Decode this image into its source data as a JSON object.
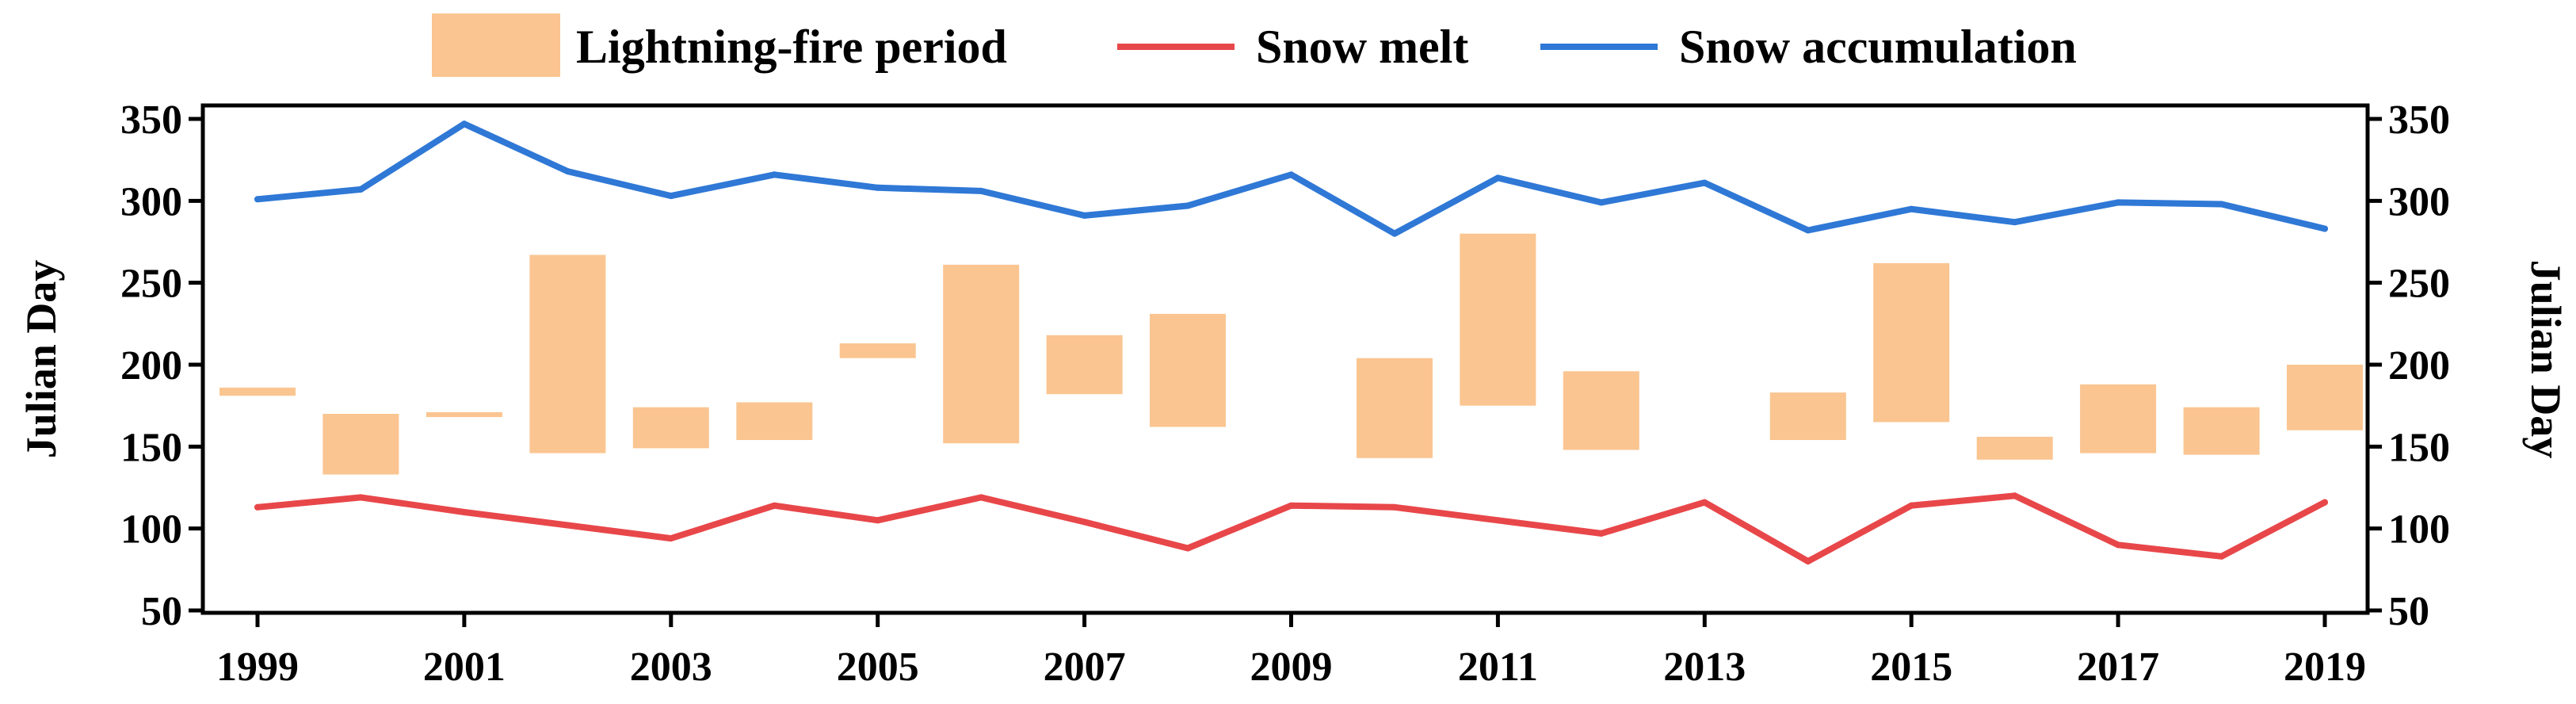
{
  "chart_data": {
    "type": "bar+line",
    "years": [
      1999,
      2000,
      2001,
      2002,
      2003,
      2004,
      2005,
      2006,
      2007,
      2008,
      2009,
      2010,
      2011,
      2012,
      2013,
      2014,
      2015,
      2016,
      2017,
      2018,
      2019
    ],
    "x_tick_labels": [
      "1999",
      "2001",
      "2003",
      "2005",
      "2007",
      "2009",
      "2011",
      "2013",
      "2015",
      "2017",
      "2019"
    ],
    "x_ticks": [
      1999,
      2001,
      2003,
      2005,
      2007,
      2009,
      2011,
      2013,
      2015,
      2017,
      2019
    ],
    "ylabel_left": "Julian Day",
    "ylabel_right": "Julian Day",
    "ylim": [
      50,
      360
    ],
    "y_ticks": [
      50,
      100,
      150,
      200,
      250,
      300,
      350
    ],
    "y_tick_labels": [
      "50",
      "100",
      "150",
      "200",
      "250",
      "300",
      "350"
    ],
    "series": [
      {
        "name": "Lightning-fire period",
        "kind": "floating-bar",
        "color": "#FAC591",
        "ranges": [
          [
            181,
            186
          ],
          [
            133,
            170
          ],
          [
            168,
            171
          ],
          [
            146,
            267
          ],
          [
            149,
            174
          ],
          [
            154,
            177
          ],
          [
            204,
            213
          ],
          [
            152,
            261
          ],
          [
            182,
            218
          ],
          [
            162,
            231
          ],
          null,
          [
            143,
            204
          ],
          [
            175,
            280
          ],
          [
            148,
            196
          ],
          null,
          [
            154,
            183
          ],
          [
            165,
            262
          ],
          [
            142,
            156
          ],
          [
            146,
            188
          ],
          [
            145,
            174
          ],
          [
            160,
            200
          ]
        ]
      },
      {
        "name": "Snow melt",
        "kind": "line",
        "color": "#E8474A",
        "values": [
          113,
          119,
          110,
          102,
          94,
          114,
          105,
          119,
          104,
          88,
          114,
          113,
          105,
          97,
          116,
          80,
          114,
          120,
          90,
          83,
          116
        ]
      },
      {
        "name": "Snow accumulation",
        "kind": "line",
        "color": "#2F78D6",
        "values": [
          301,
          307,
          347,
          318,
          303,
          316,
          308,
          306,
          291,
          297,
          316,
          280,
          314,
          299,
          311,
          282,
          295,
          287,
          299,
          298,
          283
        ]
      }
    ],
    "legend": {
      "placement": "top-center",
      "entries": [
        "Lightning-fire period",
        "Snow melt",
        "Snow accumulation"
      ]
    }
  }
}
